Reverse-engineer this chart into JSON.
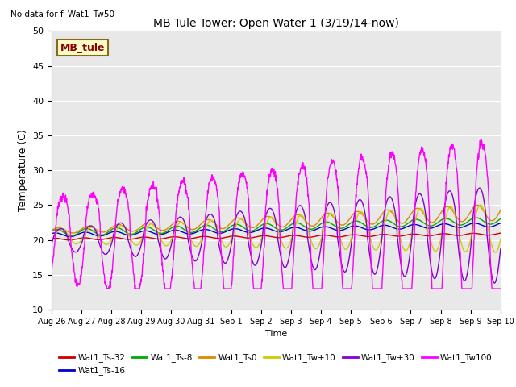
{
  "title": "MB Tule Tower: Open Water 1 (3/19/14-now)",
  "no_data_text": "No data for f_Wat1_Tw50",
  "xlabel": "Time",
  "ylabel": "Temperature (C)",
  "ylim": [
    10,
    50
  ],
  "yticks": [
    10,
    15,
    20,
    25,
    30,
    35,
    40,
    45,
    50
  ],
  "bg_color": "#e8e8e8",
  "fig_color": "#ffffff",
  "legend_box_label": "MB_tule",
  "legend_entries": [
    {
      "label": "Wat1_Ts-32",
      "color": "#cc0000"
    },
    {
      "label": "Wat1_Ts-16",
      "color": "#0000cc"
    },
    {
      "label": "Wat1_Ts-8",
      "color": "#00aa00"
    },
    {
      "label": "Wat1_Ts0",
      "color": "#dd8800"
    },
    {
      "label": "Wat1_Tw+10",
      "color": "#cccc00"
    },
    {
      "label": "Wat1_Tw+30",
      "color": "#8800cc"
    },
    {
      "label": "Wat1_Tw100",
      "color": "#ff00ff"
    }
  ],
  "tick_days": [
    0,
    1,
    2,
    3,
    4,
    5,
    6,
    7,
    8,
    9,
    10,
    11,
    12,
    13,
    14,
    15
  ],
  "tick_labels": [
    "Aug 26",
    "Aug 27",
    "Aug 28",
    "Aug 29",
    "Aug 30",
    "Aug 31",
    "Sep 1",
    "Sep 2",
    "Sep 3",
    "Sep 4",
    "Sep 5",
    "Sep 6",
    "Sep 7",
    "Sep 8",
    "Sep 9",
    "Sep 10"
  ],
  "n_points": 1500
}
